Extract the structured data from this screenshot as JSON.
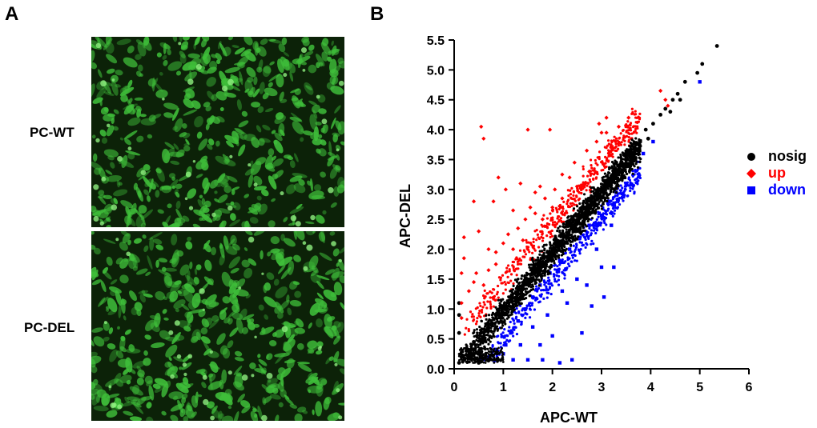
{
  "panels": {
    "a_label": "A",
    "b_label": "B",
    "images": [
      {
        "label": "PC-WT",
        "icon": "green-fluorescence-micrograph"
      },
      {
        "label": "PC-DEL",
        "icon": "green-fluorescence-micrograph"
      }
    ]
  },
  "colors": {
    "nosig": "#000000",
    "up": "#ff0000",
    "down": "#0000ff",
    "fluorescence": "#3fbf3a"
  },
  "chart_data": {
    "type": "scatter",
    "xlabel": "APC-WT",
    "ylabel": "APC-DEL",
    "xlim": [
      0,
      6
    ],
    "ylim": [
      0,
      5.5
    ],
    "xticks": [
      0,
      1,
      2,
      3,
      4,
      5,
      6
    ],
    "yticks": [
      0.0,
      0.5,
      1.0,
      1.5,
      2.0,
      2.5,
      3.0,
      3.5,
      4.0,
      4.5,
      5.0,
      5.5
    ],
    "xtick_labels": [
      "0",
      "1",
      "2",
      "3",
      "4",
      "5",
      "6"
    ],
    "ytick_labels": [
      "0.0",
      "0.5",
      "1.0",
      "1.5",
      "2.0",
      "2.5",
      "3.0",
      "3.5",
      "4.0",
      "4.5",
      "5.0",
      "5.5"
    ],
    "grid": false,
    "legend_position": "right",
    "series": [
      {
        "name": "nosig",
        "marker": "circle",
        "color": "#000000",
        "points": [
          [
            5.35,
            5.4
          ],
          [
            5.05,
            5.1
          ],
          [
            4.95,
            4.95
          ],
          [
            4.7,
            4.8
          ],
          [
            4.55,
            4.6
          ],
          [
            4.45,
            4.5
          ],
          [
            4.3,
            4.35
          ],
          [
            4.2,
            4.25
          ],
          [
            4.05,
            4.1
          ],
          [
            3.9,
            4.0
          ],
          [
            3.7,
            3.75
          ],
          [
            3.55,
            3.6
          ],
          [
            3.4,
            3.45
          ],
          [
            3.25,
            3.3
          ],
          [
            3.1,
            3.15
          ],
          [
            2.95,
            3.0
          ],
          [
            2.8,
            2.85
          ],
          [
            2.65,
            2.7
          ],
          [
            2.5,
            2.55
          ],
          [
            2.35,
            2.4
          ],
          [
            2.2,
            2.25
          ],
          [
            2.05,
            2.1
          ],
          [
            1.9,
            1.95
          ],
          [
            1.75,
            1.8
          ],
          [
            1.6,
            1.65
          ],
          [
            1.45,
            1.5
          ],
          [
            1.3,
            1.35
          ],
          [
            1.15,
            1.2
          ],
          [
            1.0,
            1.05
          ],
          [
            0.85,
            0.9
          ],
          [
            0.7,
            0.75
          ],
          [
            0.55,
            0.6
          ],
          [
            0.4,
            0.45
          ],
          [
            0.25,
            0.3
          ],
          [
            0.15,
            0.2
          ],
          [
            0.1,
            0.1
          ],
          [
            0.5,
            0.1
          ],
          [
            0.9,
            0.15
          ],
          [
            0.1,
            0.6
          ],
          [
            0.1,
            0.9
          ],
          [
            0.1,
            1.1
          ],
          [
            3.95,
            3.85
          ],
          [
            4.4,
            4.3
          ],
          [
            4.6,
            4.5
          ],
          [
            3.3,
            3.45
          ],
          [
            2.3,
            2.45
          ]
        ]
      },
      {
        "name": "up",
        "marker": "diamond",
        "color": "#ff0000",
        "points": [
          [
            0.55,
            4.05
          ],
          [
            0.6,
            3.85
          ],
          [
            1.5,
            4.0
          ],
          [
            1.95,
            4.0
          ],
          [
            3.1,
            4.2
          ],
          [
            3.55,
            4.2
          ],
          [
            4.2,
            4.65
          ],
          [
            4.3,
            4.5
          ],
          [
            4.35,
            4.4
          ],
          [
            2.95,
            4.1
          ],
          [
            3.0,
            3.95
          ],
          [
            0.9,
            3.2
          ],
          [
            1.05,
            3.0
          ],
          [
            1.35,
            3.1
          ],
          [
            1.75,
            3.05
          ],
          [
            0.8,
            2.8
          ],
          [
            0.4,
            2.8
          ],
          [
            1.65,
            2.95
          ],
          [
            2.2,
            3.25
          ],
          [
            2.45,
            3.45
          ],
          [
            2.7,
            3.65
          ],
          [
            2.9,
            3.8
          ],
          [
            3.1,
            3.95
          ],
          [
            3.35,
            4.05
          ],
          [
            1.2,
            2.65
          ],
          [
            1.55,
            2.7
          ],
          [
            1.85,
            2.85
          ],
          [
            2.05,
            3.0
          ],
          [
            2.35,
            3.2
          ],
          [
            0.5,
            2.3
          ],
          [
            0.2,
            2.2
          ],
          [
            0.2,
            1.85
          ],
          [
            0.15,
            1.6
          ],
          [
            0.3,
            1.3
          ],
          [
            0.15,
            1.1
          ],
          [
            0.15,
            0.85
          ],
          [
            0.45,
            1.6
          ],
          [
            0.7,
            1.65
          ],
          [
            0.85,
            1.95
          ],
          [
            1.0,
            2.1
          ],
          [
            1.1,
            2.25
          ],
          [
            1.3,
            2.35
          ],
          [
            1.45,
            2.5
          ],
          [
            1.65,
            2.6
          ],
          [
            0.7,
            2.0
          ],
          [
            0.85,
            1.75
          ],
          [
            0.6,
            1.4
          ],
          [
            0.4,
            1.45
          ],
          [
            1.2,
            2.0
          ],
          [
            1.4,
            2.15
          ],
          [
            1.8,
            2.5
          ],
          [
            2.0,
            2.7
          ],
          [
            2.2,
            2.85
          ],
          [
            2.5,
            3.05
          ],
          [
            2.75,
            3.3
          ]
        ]
      },
      {
        "name": "down",
        "marker": "square",
        "color": "#0000ff",
        "points": [
          [
            5.0,
            4.8
          ],
          [
            3.85,
            3.6
          ],
          [
            4.05,
            3.8
          ],
          [
            3.5,
            3.1
          ],
          [
            3.3,
            2.95
          ],
          [
            3.15,
            2.8
          ],
          [
            2.95,
            2.6
          ],
          [
            2.75,
            2.4
          ],
          [
            2.55,
            2.2
          ],
          [
            2.35,
            2.0
          ],
          [
            2.15,
            1.8
          ],
          [
            1.95,
            1.6
          ],
          [
            1.75,
            1.4
          ],
          [
            1.6,
            1.2
          ],
          [
            1.45,
            1.0
          ],
          [
            1.3,
            0.8
          ],
          [
            1.15,
            0.6
          ],
          [
            1.05,
            0.4
          ],
          [
            1.0,
            0.25
          ],
          [
            1.2,
            0.15
          ],
          [
            1.5,
            0.15
          ],
          [
            1.8,
            0.15
          ],
          [
            2.15,
            0.1
          ],
          [
            1.75,
            0.4
          ],
          [
            2.4,
            0.15
          ],
          [
            2.0,
            0.55
          ],
          [
            2.6,
            0.6
          ],
          [
            2.3,
            1.1
          ],
          [
            2.7,
            1.4
          ],
          [
            2.9,
            2.0
          ],
          [
            3.2,
            2.4
          ],
          [
            3.0,
            1.7
          ],
          [
            3.05,
            1.2
          ],
          [
            2.5,
            1.5
          ],
          [
            2.2,
            1.3
          ],
          [
            1.9,
            0.9
          ],
          [
            1.6,
            0.7
          ],
          [
            3.25,
            1.7
          ],
          [
            2.8,
            1.05
          ],
          [
            1.35,
            0.4
          ]
        ]
      }
    ],
    "legend": [
      {
        "name": "nosig",
        "marker": "circle",
        "color": "#000000"
      },
      {
        "name": "up",
        "marker": "diamond",
        "color": "#ff0000"
      },
      {
        "name": "down",
        "marker": "square",
        "color": "#0000ff"
      }
    ]
  }
}
